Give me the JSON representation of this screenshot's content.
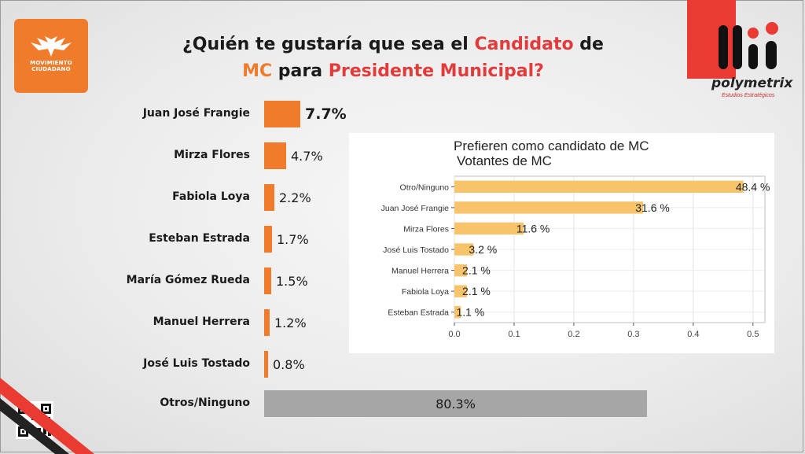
{
  "title": {
    "part1": "¿Quién te gustaría que sea el ",
    "part2": "Candidato",
    "part3": " de",
    "part4": "MC",
    "part5": " para ",
    "part6": "Presidente Municipal?"
  },
  "logos": {
    "mc_line1": "MOVIMIENTO",
    "mc_line2": "CIUDADANO",
    "pm_name": "polymetrix",
    "pm_sub": "Estudios Estratégicos"
  },
  "colors": {
    "orange": "#ef7b2b",
    "red": "#e23b3b",
    "gray_bar": "#a6a6a6",
    "inset_bar": "#f7c46c"
  },
  "chart_data": [
    {
      "type": "bar",
      "orientation": "horizontal",
      "categories": [
        "Juan José Frangie",
        "Mirza Flores",
        "Fabiola Loya",
        "Esteban Estrada",
        "María Gómez Rueda",
        "Manuel Herrera",
        "José Luis Tostado",
        "Otros/Ninguno"
      ],
      "values": [
        7.7,
        4.7,
        2.2,
        1.7,
        1.5,
        1.2,
        0.8,
        80.3
      ],
      "labels": [
        "7.7%",
        "4.7%",
        "2.2%",
        "1.7%",
        "1.5%",
        "1.2%",
        "0.8%",
        "80.3%"
      ],
      "unit": "%"
    },
    {
      "type": "bar",
      "orientation": "horizontal",
      "title": "Prefieren como candidato de MC",
      "subtitle": "Votantes de MC",
      "categories": [
        "Otro/Ninguno",
        "Juan José Frangie",
        "Mirza Flores",
        "José Luis Tostado",
        "Manuel Herrera",
        "Fabiola Loya",
        "Esteban Estrada"
      ],
      "values": [
        0.484,
        0.316,
        0.116,
        0.032,
        0.021,
        0.021,
        0.011
      ],
      "labels": [
        "48.4 %",
        "31.6 %",
        "11.6 %",
        "3.2 %",
        "2.1 %",
        "2.1 %",
        "1.1 %"
      ],
      "xticks": [
        "0.0",
        "0.1",
        "0.2",
        "0.3",
        "0.4",
        "0.5"
      ],
      "xlim": [
        0,
        0.52
      ],
      "grid": true
    }
  ]
}
